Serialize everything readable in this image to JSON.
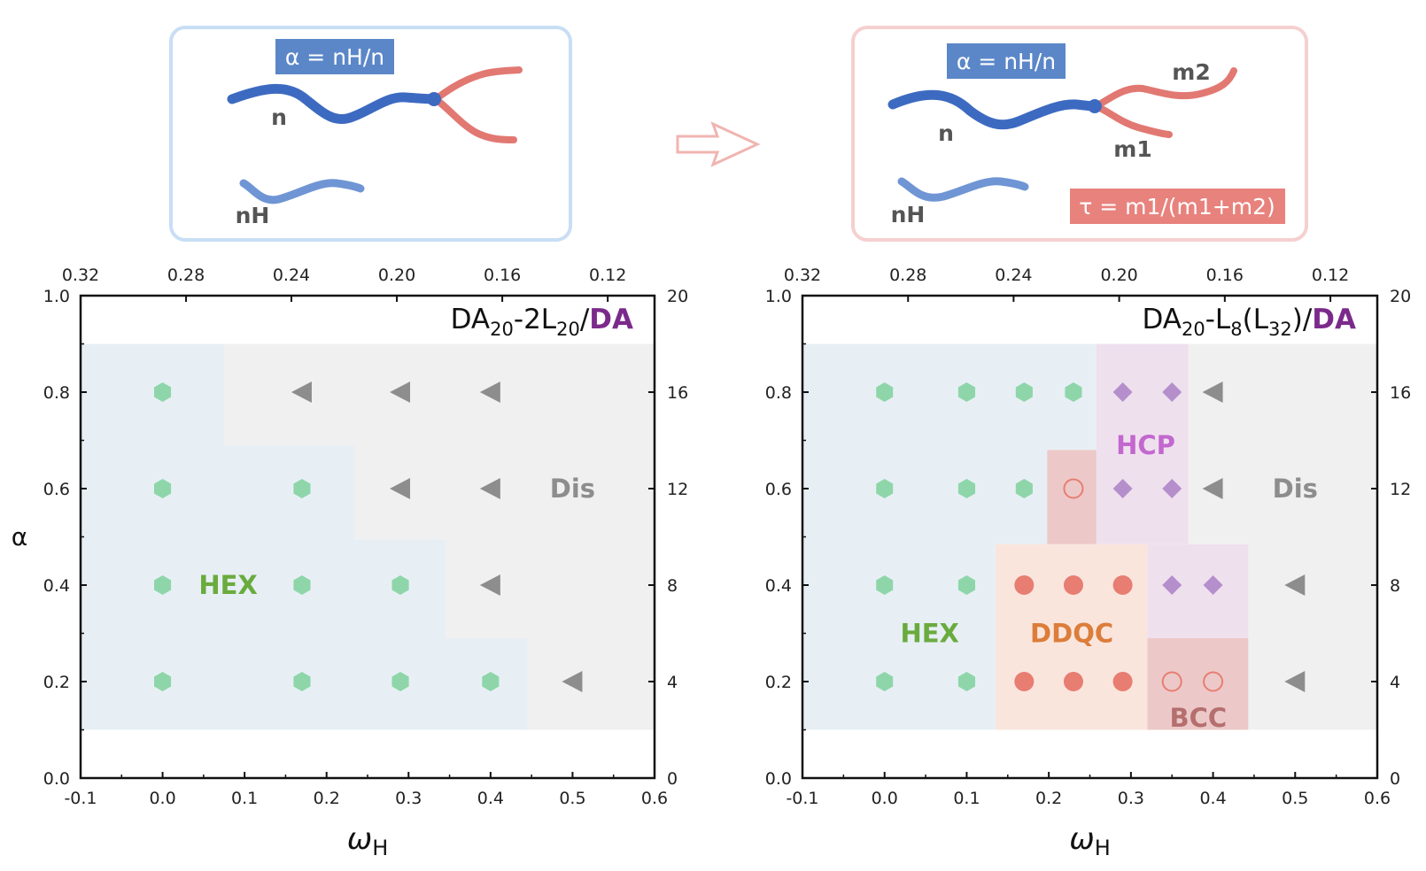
{
  "colors": {
    "hex_region": "#e7eff5",
    "dis_region": "#f0f0f0",
    "ddqc_region": "#fae5dd",
    "bcc_region": "#ecc9c8",
    "hcp_region": "#efe0ee",
    "hex_marker": "#8ed6a9",
    "dis_marker": "#8d8d8d",
    "hcp_marker": "#b58fcc",
    "ddqc_marker": "#e87d72",
    "bcc_marker": "#e87d72",
    "hex_label": "#6aab3e",
    "ddqc_label": "#dc7d3a",
    "bcc_label": "#b56f6f",
    "hcp_label": "#c268cf",
    "dis_label": "#8d8d8d",
    "da_purple": "#7b2a8c",
    "blue_chain": "#3d6ac1",
    "light_blue_chain": "#6f95d4",
    "red_chain": "#e27872",
    "formula_blue_bg": "#5b87c8",
    "formula_red_bg": "#e8827d"
  },
  "schematic": {
    "left": {
      "formula": "α = nH/n",
      "labels": {
        "n": "n",
        "nH": "nH"
      }
    },
    "right": {
      "formula_alpha": "α = nH/n",
      "formula_tau": "τ = m1/(m1+m2)",
      "labels": {
        "n": "n",
        "nH": "nH",
        "m1": "m1",
        "m2": "m2"
      }
    },
    "arrow_icon": "right-arrow-icon"
  },
  "chart_data": [
    {
      "type": "scatter",
      "title": "DA20-2L20/DA",
      "title_parts": {
        "main": "DA",
        "sub1": "20",
        "mid": "-2L",
        "sub2": "20",
        "slash": "/",
        "purple": "DA"
      },
      "xlabel": "ωH",
      "ylabel": "α",
      "xlim": [
        -0.1,
        0.6
      ],
      "ylim": [
        0.0,
        1.0
      ],
      "x_ticks": [
        -0.1,
        0.0,
        0.1,
        0.2,
        0.3,
        0.4,
        0.5,
        0.6
      ],
      "x_tick_labels": [
        "-0.1",
        "0.0",
        "0.1",
        "0.2",
        "0.3",
        "0.4",
        "0.5",
        "0.6"
      ],
      "y_ticks": [
        0.0,
        0.2,
        0.4,
        0.6,
        0.8,
        1.0
      ],
      "y_tick_labels": [
        "0.0",
        "0.2",
        "0.4",
        "0.6",
        "0.8",
        "1.0"
      ],
      "top_ticks_data_x": [
        0.0,
        0.1286,
        0.2571,
        0.3857,
        0.5143,
        0.6429
      ],
      "top_tick_labels": [
        "0.32",
        "0.28",
        "0.24",
        "0.20",
        "0.16",
        "0.12"
      ],
      "right_ticks_data_y": [
        0.0,
        0.2,
        0.4,
        0.6,
        0.8,
        1.0
      ],
      "right_tick_labels": [
        "0",
        "4",
        "8",
        "12",
        "16",
        "20"
      ],
      "regions": [
        {
          "phase": "HEX",
          "polygon": [
            [
              -0.1,
              0.1
            ],
            [
              0.445,
              0.1
            ],
            [
              0.445,
              0.29
            ],
            [
              0.345,
              0.29
            ],
            [
              0.345,
              0.495
            ],
            [
              0.235,
              0.495
            ],
            [
              0.235,
              0.69
            ],
            [
              0.075,
              0.69
            ],
            [
              0.075,
              0.9
            ],
            [
              -0.1,
              0.9
            ]
          ]
        },
        {
          "phase": "Dis",
          "polygon": [
            [
              0.445,
              0.1
            ],
            [
              0.6,
              0.1
            ],
            [
              0.6,
              0.9
            ],
            [
              0.075,
              0.9
            ],
            [
              0.075,
              0.69
            ],
            [
              0.235,
              0.69
            ],
            [
              0.235,
              0.495
            ],
            [
              0.345,
              0.495
            ],
            [
              0.345,
              0.29
            ],
            [
              0.445,
              0.29
            ]
          ]
        }
      ],
      "region_labels": [
        {
          "text": "HEX",
          "phase": "HEX",
          "x": 0.08,
          "y": 0.4
        },
        {
          "text": "Dis",
          "phase": "Dis",
          "x": 0.5,
          "y": 0.6
        }
      ],
      "series": [
        {
          "name": "HEX",
          "marker": "hexagon",
          "points": [
            [
              0.0,
              0.8
            ],
            [
              0.0,
              0.6
            ],
            [
              0.17,
              0.6
            ],
            [
              0.0,
              0.4
            ],
            [
              0.17,
              0.4
            ],
            [
              0.29,
              0.4
            ],
            [
              0.0,
              0.2
            ],
            [
              0.17,
              0.2
            ],
            [
              0.29,
              0.2
            ],
            [
              0.4,
              0.2
            ]
          ]
        },
        {
          "name": "Dis",
          "marker": "triangle-left",
          "points": [
            [
              0.17,
              0.8
            ],
            [
              0.29,
              0.8
            ],
            [
              0.4,
              0.8
            ],
            [
              0.29,
              0.6
            ],
            [
              0.4,
              0.6
            ],
            [
              0.4,
              0.4
            ],
            [
              0.5,
              0.2
            ]
          ]
        }
      ]
    },
    {
      "type": "scatter",
      "title": "DA20-L8(L32)/DA",
      "title_parts": {
        "main": "DA",
        "sub1": "20",
        "mid": "-L",
        "sub2": "8",
        "paren_open": "(L",
        "sub3": "32",
        "paren_close": ")",
        "slash": "/",
        "purple": "DA"
      },
      "xlabel": "ωH",
      "ylabel": "",
      "xlim": [
        -0.1,
        0.6
      ],
      "ylim": [
        0.0,
        1.0
      ],
      "x_ticks": [
        -0.1,
        0.0,
        0.1,
        0.2,
        0.3,
        0.4,
        0.5,
        0.6
      ],
      "x_tick_labels": [
        "-0.1",
        "0.0",
        "0.1",
        "0.2",
        "0.3",
        "0.4",
        "0.5",
        "0.6"
      ],
      "y_ticks": [
        0.0,
        0.2,
        0.4,
        0.6,
        0.8,
        1.0
      ],
      "y_tick_labels": [
        "0.0",
        "0.2",
        "0.4",
        "0.6",
        "0.8",
        "1.0"
      ],
      "top_ticks_data_x": [
        0.0,
        0.1286,
        0.2571,
        0.3857,
        0.5143,
        0.6429
      ],
      "top_tick_labels": [
        "0.32",
        "0.28",
        "0.24",
        "0.20",
        "0.16",
        "0.12"
      ],
      "right_ticks_data_y": [
        0.0,
        0.2,
        0.4,
        0.6,
        0.8,
        1.0
      ],
      "right_tick_labels": [
        "0",
        "4",
        "8",
        "12",
        "16",
        "20"
      ],
      "regions": [
        {
          "phase": "HEX",
          "polygon": [
            [
              -0.1,
              0.1
            ],
            [
              0.135,
              0.1
            ],
            [
              0.135,
              0.485
            ],
            [
              0.198,
              0.485
            ],
            [
              0.198,
              0.68
            ],
            [
              0.258,
              0.68
            ],
            [
              0.258,
              0.9
            ],
            [
              -0.1,
              0.9
            ]
          ]
        },
        {
          "phase": "DDQC",
          "polygon": [
            [
              0.135,
              0.1
            ],
            [
              0.32,
              0.1
            ],
            [
              0.32,
              0.485
            ],
            [
              0.135,
              0.485
            ]
          ]
        },
        {
          "phase": "BCC",
          "polygon": [
            [
              0.198,
              0.485
            ],
            [
              0.258,
              0.485
            ],
            [
              0.258,
              0.68
            ],
            [
              0.198,
              0.68
            ]
          ]
        },
        {
          "phase": "HCP",
          "polygon": [
            [
              0.258,
              0.485
            ],
            [
              0.258,
              0.9
            ],
            [
              0.37,
              0.9
            ],
            [
              0.37,
              0.485
            ]
          ]
        },
        {
          "phase": "HCP",
          "polygon": [
            [
              0.32,
              0.29
            ],
            [
              0.32,
              0.485
            ],
            [
              0.443,
              0.485
            ],
            [
              0.443,
              0.29
            ]
          ]
        },
        {
          "phase": "BCC",
          "polygon": [
            [
              0.32,
              0.1
            ],
            [
              0.443,
              0.1
            ],
            [
              0.443,
              0.29
            ],
            [
              0.32,
              0.29
            ]
          ]
        },
        {
          "phase": "Dis",
          "polygon": [
            [
              0.443,
              0.1
            ],
            [
              0.6,
              0.1
            ],
            [
              0.6,
              0.9
            ],
            [
              0.37,
              0.9
            ],
            [
              0.37,
              0.485
            ],
            [
              0.443,
              0.485
            ]
          ]
        }
      ],
      "region_labels": [
        {
          "text": "HEX",
          "phase": "HEX",
          "x": 0.055,
          "y": 0.3
        },
        {
          "text": "DDQC",
          "phase": "DDQC",
          "x": 0.228,
          "y": 0.3
        },
        {
          "text": "BCC",
          "phase": "BCC",
          "x": 0.382,
          "y": 0.125
        },
        {
          "text": "HCP",
          "phase": "HCP",
          "x": 0.318,
          "y": 0.69
        },
        {
          "text": "Dis",
          "phase": "Dis",
          "x": 0.5,
          "y": 0.6
        }
      ],
      "series": [
        {
          "name": "HEX",
          "marker": "hexagon",
          "points": [
            [
              0.0,
              0.8
            ],
            [
              0.1,
              0.8
            ],
            [
              0.17,
              0.8
            ],
            [
              0.23,
              0.8
            ],
            [
              0.0,
              0.6
            ],
            [
              0.1,
              0.6
            ],
            [
              0.17,
              0.6
            ],
            [
              0.0,
              0.4
            ],
            [
              0.1,
              0.4
            ],
            [
              0.0,
              0.2
            ],
            [
              0.1,
              0.2
            ]
          ]
        },
        {
          "name": "HCP",
          "marker": "diamond",
          "points": [
            [
              0.29,
              0.8
            ],
            [
              0.35,
              0.8
            ],
            [
              0.29,
              0.6
            ],
            [
              0.35,
              0.6
            ],
            [
              0.35,
              0.4
            ],
            [
              0.4,
              0.4
            ]
          ]
        },
        {
          "name": "Dis",
          "marker": "triangle-left",
          "points": [
            [
              0.4,
              0.8
            ],
            [
              0.4,
              0.6
            ],
            [
              0.5,
              0.4
            ],
            [
              0.5,
              0.2
            ]
          ]
        },
        {
          "name": "DDQC",
          "marker": "circle",
          "points": [
            [
              0.17,
              0.4
            ],
            [
              0.23,
              0.4
            ],
            [
              0.29,
              0.4
            ],
            [
              0.17,
              0.2
            ],
            [
              0.23,
              0.2
            ],
            [
              0.29,
              0.2
            ]
          ]
        },
        {
          "name": "BCC",
          "marker": "open-circle",
          "points": [
            [
              0.23,
              0.6
            ],
            [
              0.35,
              0.2
            ],
            [
              0.4,
              0.2
            ]
          ]
        }
      ]
    }
  ]
}
